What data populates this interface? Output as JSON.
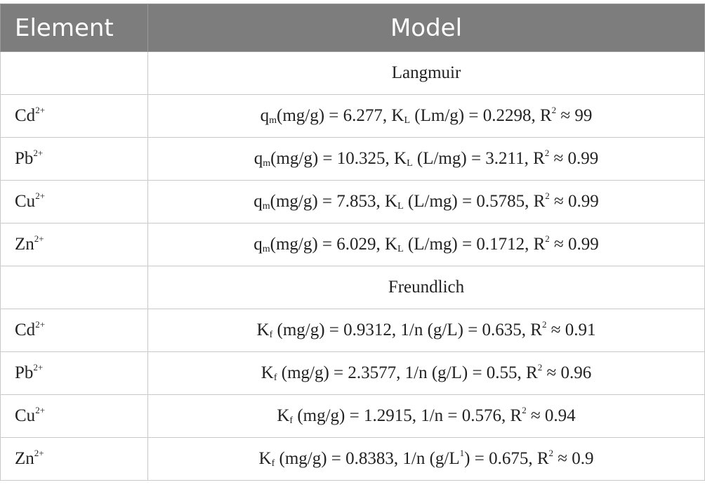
{
  "header": {
    "element": "Element",
    "model": "Model"
  },
  "sections": [
    {
      "title": "Langmuir",
      "rows": [
        {
          "ion": "Cd",
          "charge": "2+",
          "parts": [
            {
              "t": "q"
            },
            {
              "t": "m",
              "s": "sub"
            },
            {
              "t": "(mg/g) = 6.277, K"
            },
            {
              "t": "L",
              "s": "sub"
            },
            {
              "t": " (Lm/g) = 0.2298, R"
            },
            {
              "t": "2",
              "s": "sup"
            },
            {
              "t": " ≈ 99"
            }
          ]
        },
        {
          "ion": "Pb",
          "charge": "2+",
          "parts": [
            {
              "t": "q"
            },
            {
              "t": "m",
              "s": "sub"
            },
            {
              "t": "(mg/g) = 10.325, K"
            },
            {
              "t": "L",
              "s": "sub"
            },
            {
              "t": " (L/mg) = 3.211, R"
            },
            {
              "t": "2",
              "s": "sup"
            },
            {
              "t": " ≈ 0.99"
            }
          ]
        },
        {
          "ion": "Cu",
          "charge": "2+",
          "parts": [
            {
              "t": "q"
            },
            {
              "t": "m",
              "s": "sub"
            },
            {
              "t": "(mg/g) = 7.853, K"
            },
            {
              "t": "L",
              "s": "sub"
            },
            {
              "t": " (L/mg) = 0.5785, R"
            },
            {
              "t": "2",
              "s": "sup"
            },
            {
              "t": " ≈ 0.99"
            }
          ]
        },
        {
          "ion": "Zn",
          "charge": "2+",
          "parts": [
            {
              "t": "q"
            },
            {
              "t": "m",
              "s": "sub"
            },
            {
              "t": "(mg/g) = 6.029, K"
            },
            {
              "t": "L",
              "s": "sub"
            },
            {
              "t": " (L/mg) = 0.1712, R"
            },
            {
              "t": "2",
              "s": "sup"
            },
            {
              "t": " ≈ 0.99"
            }
          ]
        }
      ]
    },
    {
      "title": "Freundlich",
      "rows": [
        {
          "ion": "Cd",
          "charge": "2+",
          "parts": [
            {
              "t": "K"
            },
            {
              "t": "f",
              "s": "sub"
            },
            {
              "t": " (mg/g) = 0.9312, 1/n (g/L) = 0.635, R"
            },
            {
              "t": "2",
              "s": "sup"
            },
            {
              "t": " ≈ 0.91"
            }
          ]
        },
        {
          "ion": "Pb",
          "charge": "2+",
          "parts": [
            {
              "t": "K"
            },
            {
              "t": "f",
              "s": "sub"
            },
            {
              "t": " (mg/g) = 2.3577, 1/n (g/L) = 0.55, R"
            },
            {
              "t": "2",
              "s": "sup"
            },
            {
              "t": " ≈ 0.96"
            }
          ]
        },
        {
          "ion": "Cu",
          "charge": "2+",
          "parts": [
            {
              "t": "K"
            },
            {
              "t": "f",
              "s": "sub"
            },
            {
              "t": " (mg/g) = 1.2915, 1/n = 0.576, R"
            },
            {
              "t": "2",
              "s": "sup"
            },
            {
              "t": " ≈ 0.94"
            }
          ]
        },
        {
          "ion": "Zn",
          "charge": "2+",
          "parts": [
            {
              "t": "K"
            },
            {
              "t": "f",
              "s": "sub"
            },
            {
              "t": " (mg/g) = 0.8383, 1/n (g/L"
            },
            {
              "t": "1",
              "s": "sup"
            },
            {
              "t": ") = 0.675, R"
            },
            {
              "t": "2",
              "s": "sup"
            },
            {
              "t": " ≈ 0.9"
            }
          ]
        }
      ]
    }
  ]
}
